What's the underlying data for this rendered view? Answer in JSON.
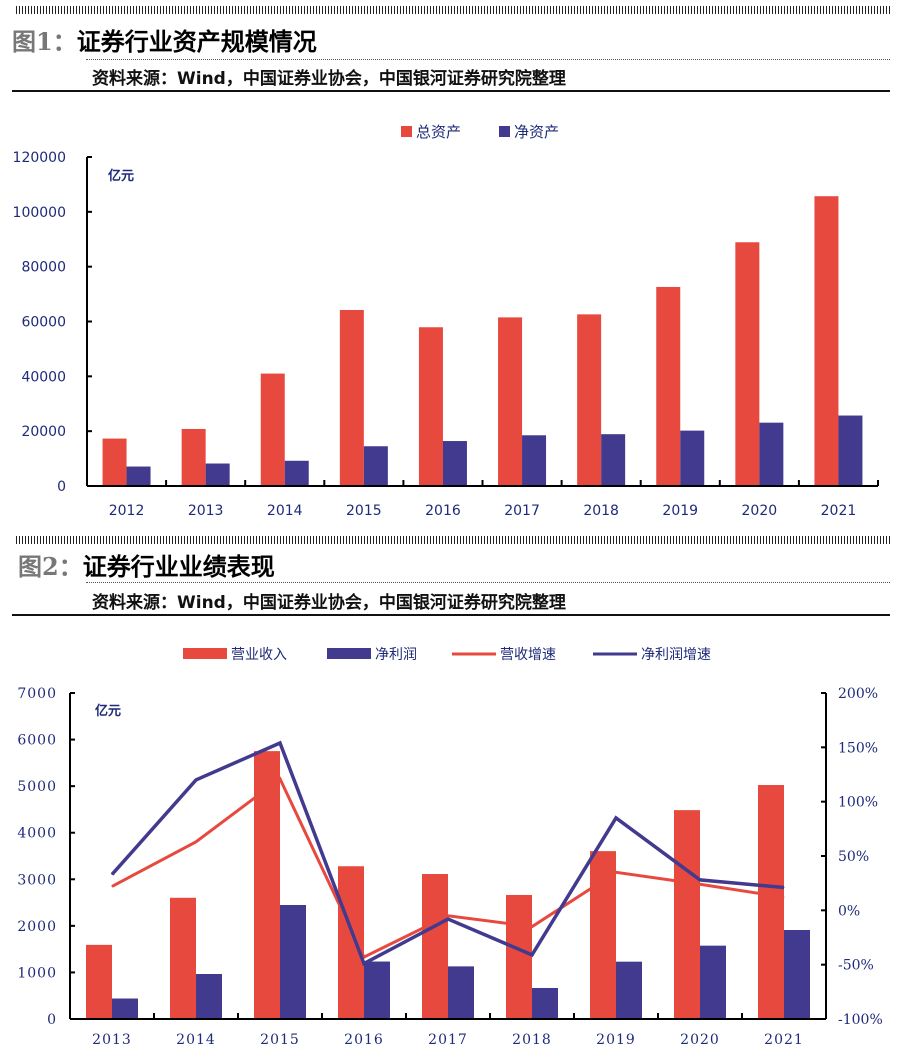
{
  "figure1": {
    "label": "图1：",
    "title": "证券行业资产规模情况",
    "source": "资料来源：Wind，中国证券业协会，中国银河证券研究院整理"
  },
  "figure2": {
    "label": "图2：",
    "title": "证券行业业绩表现",
    "source": "资料来源：Wind，中国证券业协会，中国银河证券研究院整理"
  },
  "colors": {
    "red": "#E8493F",
    "blue": "#413A8E",
    "axis_text": "#1F2A7A"
  },
  "chart_data": [
    {
      "type": "bar",
      "title": "证券行业资产规模情况",
      "unit_label": "亿元",
      "categories": [
        "2012",
        "2013",
        "2014",
        "2015",
        "2016",
        "2017",
        "2018",
        "2019",
        "2020",
        "2021"
      ],
      "series": [
        {
          "name": "总资产",
          "color": "#E8493F",
          "values": [
            17300,
            20800,
            41000,
            64200,
            57900,
            61500,
            62600,
            72600,
            88900,
            105700
          ]
        },
        {
          "name": "净资产",
          "color": "#413A8E",
          "values": [
            7100,
            8200,
            9200,
            14500,
            16400,
            18500,
            18900,
            20200,
            23100,
            25700
          ]
        }
      ],
      "ylim": [
        0,
        120000
      ],
      "yticks": [
        "0",
        "20000",
        "40000",
        "60000",
        "80000",
        "100000",
        "120000"
      ],
      "legend": "top-center",
      "grid": false
    },
    {
      "type": "bar+line",
      "title": "证券行业业绩表现",
      "unit_label": "亿元",
      "categories": [
        "2013",
        "2014",
        "2015",
        "2016",
        "2017",
        "2018",
        "2019",
        "2020",
        "2021"
      ],
      "series": [
        {
          "name": "营业收入",
          "kind": "bar",
          "axis": "left",
          "color": "#E8493F",
          "values": [
            1592,
            2603,
            5752,
            3280,
            3113,
            2663,
            3605,
            4485,
            5024
          ]
        },
        {
          "name": "净利润",
          "kind": "bar",
          "axis": "left",
          "color": "#413A8E",
          "values": [
            440,
            966,
            2448,
            1234,
            1130,
            666,
            1231,
            1575,
            1911
          ]
        },
        {
          "name": "营收增速",
          "kind": "line",
          "axis": "right",
          "color": "#E8493F",
          "values": [
            22,
            63,
            121,
            -43,
            -5,
            -15,
            35,
            24,
            12
          ]
        },
        {
          "name": "净利润增速",
          "kind": "line",
          "axis": "right",
          "color": "#413A8E",
          "values": [
            33,
            120,
            154,
            -49,
            -8,
            -41,
            85,
            28,
            21
          ]
        }
      ],
      "ylim": [
        0,
        7000
      ],
      "yticks": [
        "0",
        "1000",
        "2000",
        "3000",
        "4000",
        "5000",
        "6000",
        "7000"
      ],
      "y2lim": [
        -100,
        200
      ],
      "y2ticks": [
        "-100%",
        "-50%",
        "0%",
        "50%",
        "100%",
        "150%",
        "200%"
      ],
      "legend": "top-center",
      "grid": false
    }
  ]
}
